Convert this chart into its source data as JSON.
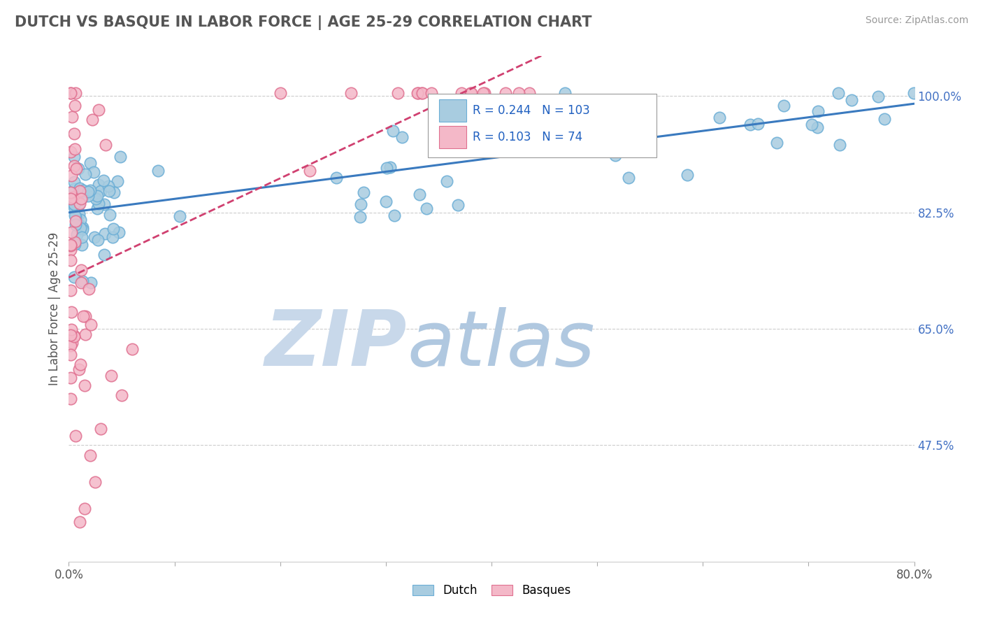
{
  "title": "DUTCH VS BASQUE IN LABOR FORCE | AGE 25-29 CORRELATION CHART",
  "source_text": "Source: ZipAtlas.com",
  "ylabel": "In Labor Force | Age 25-29",
  "xlim": [
    0.0,
    0.8
  ],
  "ylim": [
    0.3,
    1.06
  ],
  "yticks_right": [
    0.475,
    0.65,
    0.825,
    1.0
  ],
  "ytick_right_labels": [
    "47.5%",
    "65.0%",
    "82.5%",
    "100.0%"
  ],
  "R_dutch": 0.244,
  "N_dutch": 103,
  "R_basque": 0.103,
  "N_basque": 74,
  "dutch_color": "#a8cce0",
  "dutch_edge_color": "#6baed6",
  "basque_color": "#f4b8c8",
  "basque_edge_color": "#e07090",
  "dutch_line_color": "#3a7abf",
  "basque_line_color": "#d04070",
  "watermark_zip_color": "#c8d8ea",
  "watermark_atlas_color": "#b0c8e0",
  "title_color": "#555555",
  "source_color": "#999999",
  "legend_text_color": "#2060c0",
  "legend_RN_color": "#2060c0",
  "grid_color": "#cccccc",
  "right_tick_color": "#4472c4"
}
